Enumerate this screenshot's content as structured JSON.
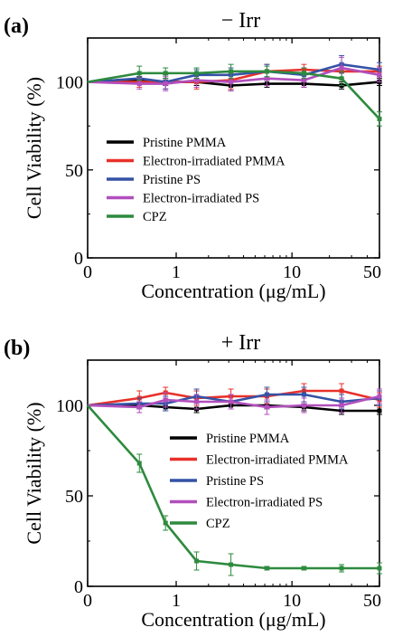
{
  "chart_data": [
    {
      "type": "line",
      "panel_tag": "(a)",
      "title": "− Irr",
      "xlabel": "Concentration (μg/mL)",
      "ylabel": "Cell Viability (%)",
      "x_scale": "symlog",
      "x_tick_labels": [
        "0",
        "1",
        "10",
        "50"
      ],
      "x_ticks": [
        0,
        1,
        10,
        50
      ],
      "y_ticks": [
        0,
        50,
        100
      ],
      "ylim": [
        0,
        125
      ],
      "x": [
        0,
        0.39,
        0.78,
        1.56,
        3.13,
        6.25,
        12.5,
        25,
        50
      ],
      "legend_position": "lower-left",
      "series": [
        {
          "name": "Pristine PMMA",
          "color": "#000000",
          "values": [
            100,
            101,
            100,
            100,
            98,
            99,
            99,
            98,
            100
          ],
          "errors": [
            1,
            2,
            2,
            2,
            3,
            2,
            2,
            2,
            2
          ]
        },
        {
          "name": "Electron-irradiated PMMA",
          "color": "#e8312b",
          "values": [
            100,
            100,
            100,
            100,
            101,
            106,
            107,
            106,
            106
          ],
          "errors": [
            2,
            3,
            4,
            4,
            5,
            4,
            3,
            4,
            3
          ]
        },
        {
          "name": "Pristine PS",
          "color": "#3552a6",
          "values": [
            100,
            102,
            100,
            104,
            104,
            106,
            104,
            110,
            107
          ],
          "errors": [
            2,
            3,
            4,
            3,
            4,
            4,
            4,
            5,
            4
          ]
        },
        {
          "name": "Electron-irradiated PS",
          "color": "#b24fbd",
          "values": [
            100,
            99,
            99,
            101,
            100,
            102,
            101,
            108,
            104
          ],
          "errors": [
            2,
            3,
            4,
            4,
            5,
            4,
            4,
            6,
            4
          ]
        },
        {
          "name": "CPZ",
          "color": "#2e8a3e",
          "values": [
            100,
            105,
            105,
            105,
            106,
            106,
            105,
            102,
            79
          ],
          "errors": [
            2,
            4,
            3,
            3,
            4,
            3,
            3,
            4,
            4
          ]
        }
      ]
    },
    {
      "type": "line",
      "panel_tag": "(b)",
      "title": "+ Irr",
      "xlabel": "Concentration (μg/mL)",
      "ylabel": "Cell Viability (%)",
      "x_scale": "symlog",
      "x_tick_labels": [
        "0",
        "1",
        "10",
        "50"
      ],
      "x_ticks": [
        0,
        1,
        10,
        50
      ],
      "y_ticks": [
        0,
        50,
        100
      ],
      "ylim": [
        0,
        125
      ],
      "x": [
        0,
        0.39,
        0.78,
        1.56,
        3.13,
        6.25,
        12.5,
        25,
        50
      ],
      "legend_position": "right",
      "series": [
        {
          "name": "Pristine PMMA",
          "color": "#000000",
          "values": [
            100,
            100,
            99,
            98,
            100,
            100,
            99,
            97,
            97
          ],
          "errors": [
            1,
            2,
            2,
            2,
            2,
            2,
            2,
            2,
            2
          ]
        },
        {
          "name": "Electron-irradiated PMMA",
          "color": "#e8312b",
          "values": [
            100,
            104,
            107,
            104,
            105,
            105,
            108,
            108,
            103
          ],
          "errors": [
            2,
            4,
            3,
            4,
            4,
            4,
            4,
            4,
            4
          ]
        },
        {
          "name": "Pristine PS",
          "color": "#3552a6",
          "values": [
            100,
            101,
            101,
            105,
            102,
            106,
            106,
            102,
            104
          ],
          "errors": [
            2,
            3,
            4,
            4,
            4,
            4,
            4,
            4,
            4
          ]
        },
        {
          "name": "Electron-irradiated PS",
          "color": "#b24fbd",
          "values": [
            100,
            99,
            103,
            102,
            102,
            99,
            100,
            100,
            105
          ],
          "errors": [
            2,
            3,
            4,
            4,
            4,
            4,
            4,
            4,
            4
          ]
        },
        {
          "name": "CPZ",
          "color": "#2e8a3e",
          "values": [
            100,
            68,
            35,
            14,
            12,
            10,
            10,
            10,
            10
          ],
          "errors": [
            2,
            5,
            4,
            5,
            6,
            1,
            1,
            2,
            3
          ]
        }
      ]
    }
  ]
}
